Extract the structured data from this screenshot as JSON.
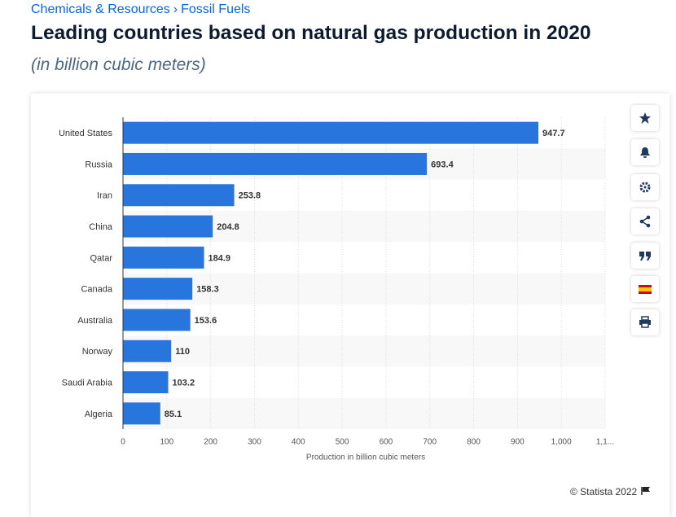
{
  "breadcrumb": {
    "items": [
      "Chemicals & Resources",
      "Fossil Fuels"
    ],
    "separator": "›"
  },
  "credit": "© Statista 2022",
  "chart_data": {
    "type": "hbar",
    "title": "Leading countries based on natural gas production in 2020",
    "subtitle": "(in billion cubic meters)",
    "x_label": "Production in billion cubic meters",
    "categories": [
      "United States",
      "Russia",
      "Iran",
      "China",
      "Qatar",
      "Canada",
      "Australia",
      "Norway",
      "Saudi Arabia",
      "Algeria"
    ],
    "values": [
      947.7,
      693.4,
      253.8,
      204.8,
      184.9,
      158.3,
      153.6,
      110,
      103.2,
      85.1
    ],
    "color": "#2876dd",
    "xlim": [
      0,
      1100
    ],
    "xticks": [
      0,
      100,
      200,
      300,
      400,
      500,
      600,
      700,
      800,
      900,
      {
        "value": 1000,
        "label": "1,000"
      },
      {
        "value": 1100,
        "label": "1,1..."
      }
    ],
    "grid": true
  }
}
